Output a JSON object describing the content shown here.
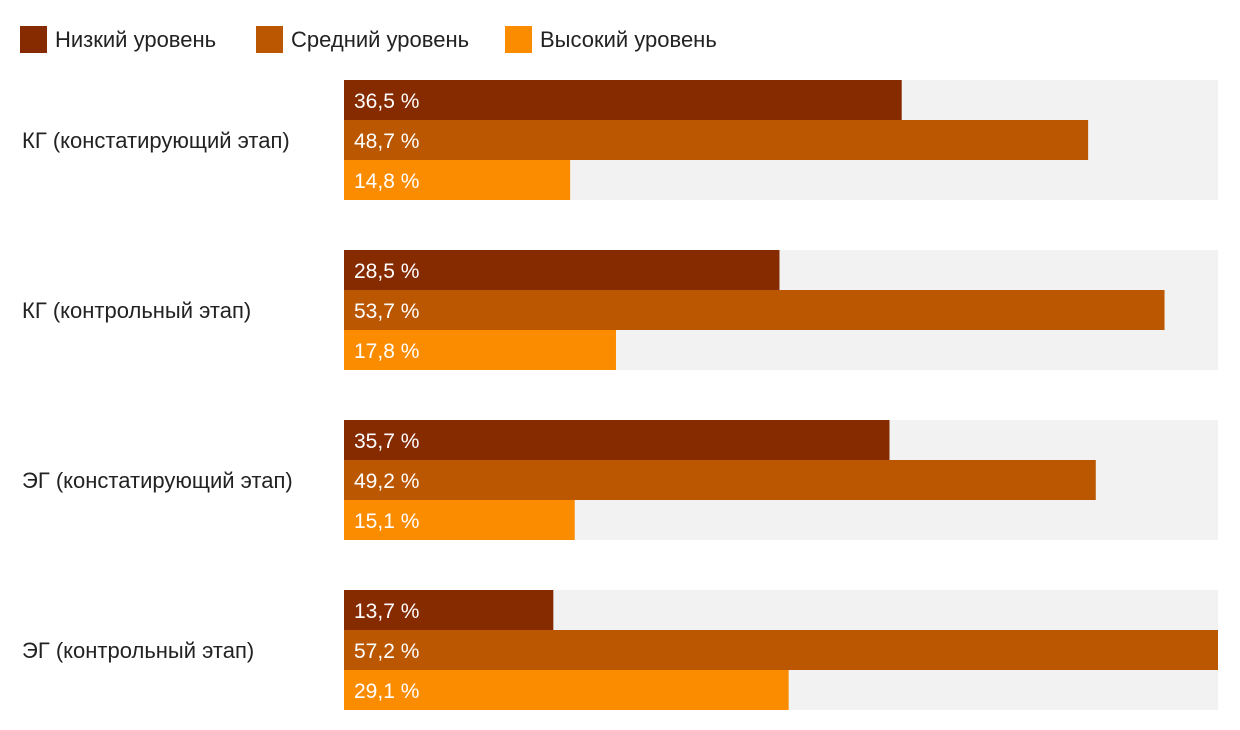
{
  "chart_data": {
    "type": "bar",
    "orientation": "horizontal",
    "title": "",
    "xlabel": "",
    "ylabel": "",
    "categories": [
      "КГ (констатирующий этап)",
      "КГ (контрольный этап)",
      "ЭГ (констатирующий этап)",
      "ЭГ (контрольный этап)"
    ],
    "series": [
      {
        "name": "Низкий уровень",
        "color": "#862a00",
        "values": [
          36.5,
          28.5,
          35.7,
          13.7
        ],
        "labels": [
          "36,5 %",
          "28,5 %",
          "35,7 %",
          "13,7 %"
        ]
      },
      {
        "name": "Средний уровень",
        "color": "#bb5700",
        "values": [
          48.7,
          53.7,
          49.2,
          57.2
        ],
        "labels": [
          "48,7 %",
          "53,7 %",
          "49,2 %",
          "57,2 %"
        ]
      },
      {
        "name": "Высокий уровень",
        "color": "#fb8c00",
        "values": [
          14.8,
          17.8,
          15.1,
          29.1
        ],
        "labels": [
          "14,8 %",
          "17,8 %",
          "15,1 %",
          "29,1 %"
        ]
      }
    ],
    "xlim": [
      0,
      57.2
    ],
    "legend_position": "top-left",
    "track_color": "#f2f2f2",
    "grid": false
  }
}
